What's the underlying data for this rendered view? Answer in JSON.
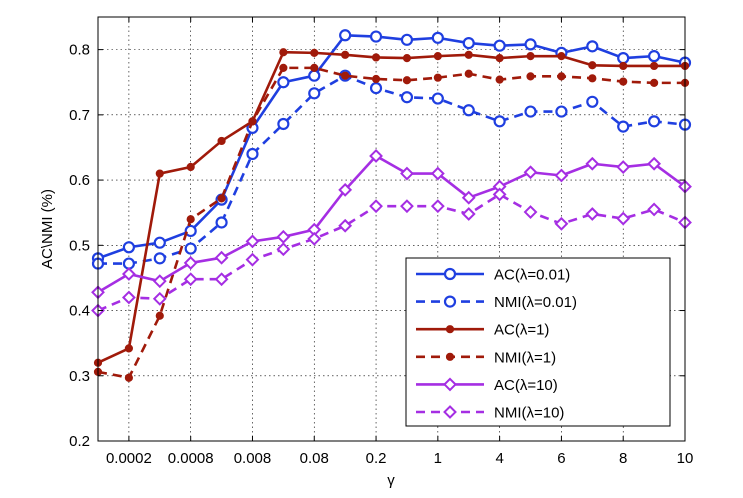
{
  "chart_data": {
    "type": "line",
    "xlabel": "γ",
    "ylabel": "AC\\NMI (%)",
    "categories": [
      "",
      "0.0002",
      "",
      "0.0008",
      "",
      "0.008",
      "",
      "0.08",
      "",
      "0.2",
      "",
      "1",
      "",
      "4",
      "",
      "6",
      "",
      "8",
      "",
      "10"
    ],
    "x_tick_labels": [
      "0.0002",
      "0.0008",
      "0.008",
      "0.08",
      "0.2",
      "1",
      "4",
      "6",
      "8",
      "10"
    ],
    "y_tick_labels": [
      "0.2",
      "0.3",
      "0.4",
      "0.5",
      "0.6",
      "0.7",
      "0.8"
    ],
    "ylim": [
      0.2,
      0.85
    ],
    "yticks": [
      0.2,
      0.3,
      0.4,
      0.5,
      0.6,
      0.7,
      0.8
    ],
    "grid": true,
    "legend_position": "bottom-right",
    "series": [
      {
        "name": "AC(λ=0.01)",
        "color": "#1f3fe0",
        "dash": "solid",
        "marker": "circle",
        "values": [
          0.48,
          0.497,
          0.504,
          0.522,
          0.57,
          0.68,
          0.75,
          0.76,
          0.822,
          0.82,
          0.815,
          0.818,
          0.81,
          0.806,
          0.808,
          0.795,
          0.805,
          0.787,
          0.79,
          0.78
        ]
      },
      {
        "name": "NMI(λ=0.01)",
        "color": "#1f3fe0",
        "dash": "dashed",
        "marker": "circle",
        "values": [
          0.472,
          0.472,
          0.48,
          0.495,
          0.535,
          0.64,
          0.686,
          0.733,
          0.76,
          0.741,
          0.727,
          0.725,
          0.707,
          0.69,
          0.705,
          0.705,
          0.72,
          0.682,
          0.69,
          0.685
        ]
      },
      {
        "name": "AC(λ=1)",
        "color": "#a01a0a",
        "dash": "solid",
        "marker": "dot",
        "values": [
          0.32,
          0.342,
          0.61,
          0.62,
          0.66,
          0.69,
          0.796,
          0.795,
          0.792,
          0.788,
          0.787,
          0.79,
          0.792,
          0.787,
          0.79,
          0.79,
          0.776,
          0.775,
          0.775,
          0.775
        ]
      },
      {
        "name": "NMI(λ=1)",
        "color": "#a01a0a",
        "dash": "dashed",
        "marker": "dot",
        "values": [
          0.306,
          0.297,
          0.392,
          0.54,
          0.572,
          0.69,
          0.772,
          0.772,
          0.76,
          0.755,
          0.753,
          0.757,
          0.763,
          0.754,
          0.759,
          0.759,
          0.756,
          0.751,
          0.749,
          0.749
        ]
      },
      {
        "name": "AC(λ=10)",
        "color": "#a52ee3",
        "dash": "solid",
        "marker": "diamond",
        "values": [
          0.428,
          0.456,
          0.445,
          0.473,
          0.481,
          0.506,
          0.513,
          0.524,
          0.585,
          0.637,
          0.61,
          0.61,
          0.573,
          0.59,
          0.612,
          0.607,
          0.625,
          0.62,
          0.625,
          0.59
        ]
      },
      {
        "name": "NMI(λ=10)",
        "color": "#a52ee3",
        "dash": "dashed",
        "marker": "diamond",
        "values": [
          0.4,
          0.42,
          0.418,
          0.448,
          0.448,
          0.478,
          0.494,
          0.51,
          0.53,
          0.56,
          0.56,
          0.56,
          0.548,
          0.578,
          0.551,
          0.533,
          0.548,
          0.541,
          0.555,
          0.535
        ]
      }
    ]
  }
}
